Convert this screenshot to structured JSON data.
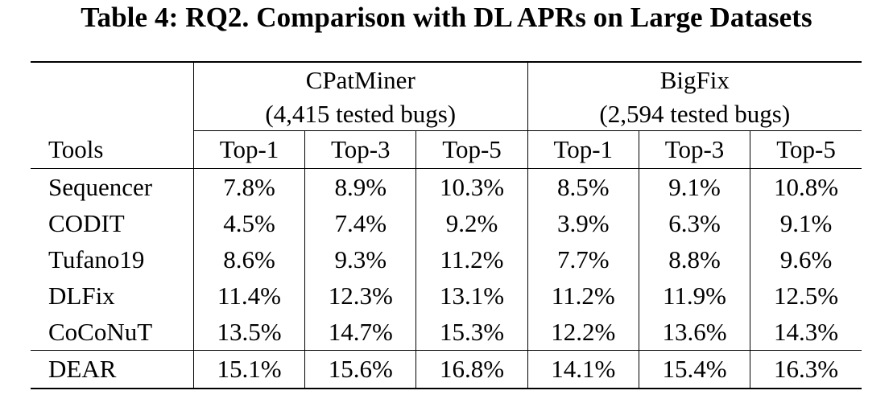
{
  "caption": "Table 4: RQ2. Comparison with DL APRs on Large Datasets",
  "groups": [
    {
      "name": "CPatMiner",
      "sub": "(4,415 tested bugs)"
    },
    {
      "name": "BigFix",
      "sub": "(2,594 tested bugs)"
    }
  ],
  "header": {
    "tools": "Tools",
    "cols": [
      "Top-1",
      "Top-3",
      "Top-5",
      "Top-1",
      "Top-3",
      "Top-5"
    ]
  },
  "rows": [
    {
      "tool": "Sequencer",
      "values": [
        "7.8%",
        "8.9%",
        "10.3%",
        "8.5%",
        "9.1%",
        "10.8%"
      ]
    },
    {
      "tool": "CODIT",
      "values": [
        "4.5%",
        "7.4%",
        "9.2%",
        "3.9%",
        "6.3%",
        "9.1%"
      ]
    },
    {
      "tool": "Tufano19",
      "values": [
        "8.6%",
        "9.3%",
        "11.2%",
        "7.7%",
        "8.8%",
        "9.6%"
      ]
    },
    {
      "tool": "DLFix",
      "values": [
        "11.4%",
        "12.3%",
        "13.1%",
        "11.2%",
        "11.9%",
        "12.5%"
      ]
    },
    {
      "tool": "CoCoNuT",
      "values": [
        "13.5%",
        "14.7%",
        "15.3%",
        "12.2%",
        "13.6%",
        "14.3%"
      ]
    },
    {
      "tool": "DEAR",
      "values": [
        "15.1%",
        "15.6%",
        "16.8%",
        "14.1%",
        "15.4%",
        "16.3%"
      ]
    }
  ]
}
